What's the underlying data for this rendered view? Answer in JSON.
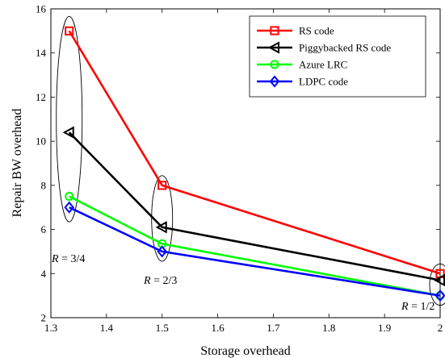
{
  "chart_data": {
    "type": "line",
    "xlabel": "Storage overhead",
    "ylabel": "Repair BW overhead",
    "xlim": [
      1.3,
      2
    ],
    "ylim": [
      2,
      16
    ],
    "xticks": [
      "1.3",
      "1.4",
      "1.5",
      "1.6",
      "1.7",
      "1.8",
      "1.9",
      "2"
    ],
    "yticks": [
      "2",
      "4",
      "6",
      "8",
      "10",
      "12",
      "14",
      "16"
    ],
    "x": [
      1.333,
      1.5,
      2
    ],
    "series": [
      {
        "name": "RS code",
        "values": [
          15,
          8,
          4
        ],
        "color": "#ff0000",
        "marker": "square"
      },
      {
        "name": "Piggybacked RS code",
        "values": [
          10.4,
          6.1,
          3.7
        ],
        "color": "#000000",
        "marker": "triangle-left"
      },
      {
        "name": "Azure LRC",
        "values": [
          7.5,
          5.35,
          3
        ],
        "color": "#00ff00",
        "marker": "circle"
      },
      {
        "name": "LDPC code",
        "values": [
          7,
          5,
          3
        ],
        "color": "#0000ff",
        "marker": "diamond"
      }
    ],
    "legend_position": "top-right",
    "annotations": [
      {
        "var": "R",
        "text": " = 3/4"
      },
      {
        "var": "R",
        "text": " = 2/3"
      },
      {
        "var": "R",
        "text": " = 1/2"
      }
    ]
  }
}
